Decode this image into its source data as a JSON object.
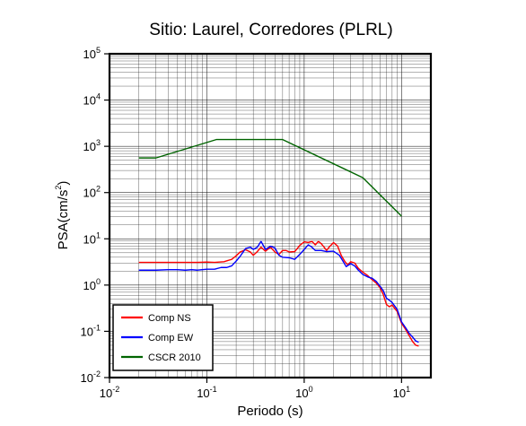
{
  "chart_data": {
    "type": "line",
    "title": "Sitio: Laurel, Corredores (PLRL)",
    "xlabel": "Periodo (s)",
    "ylabel": {
      "prefix": "PSA(cm/s",
      "sup": "2",
      "suffix": ")"
    },
    "x_scale": "log",
    "y_scale": "log",
    "xlim": [
      0.01,
      20
    ],
    "ylim": [
      0.01,
      100000
    ],
    "grid": true,
    "x_ticks": [
      {
        "base": "10",
        "exp": "-2",
        "value": 0.01
      },
      {
        "base": "10",
        "exp": "-1",
        "value": 0.1
      },
      {
        "base": "10",
        "exp": "0",
        "value": 1
      },
      {
        "base": "10",
        "exp": "1",
        "value": 10
      }
    ],
    "y_ticks": [
      {
        "base": "10",
        "exp": "-2",
        "value": 0.01
      },
      {
        "base": "10",
        "exp": "-1",
        "value": 0.1
      },
      {
        "base": "10",
        "exp": "0",
        "value": 1
      },
      {
        "base": "10",
        "exp": "1",
        "value": 10
      },
      {
        "base": "10",
        "exp": "2",
        "value": 100
      },
      {
        "base": "10",
        "exp": "3",
        "value": 1000
      },
      {
        "base": "10",
        "exp": "4",
        "value": 10000
      },
      {
        "base": "10",
        "exp": "5",
        "value": 100000
      }
    ],
    "legend_position": "bottom-left",
    "series": [
      {
        "name": "Comp NS",
        "color": "#ff0000",
        "points": [
          [
            0.02,
            3.1
          ],
          [
            0.025,
            3.1
          ],
          [
            0.03,
            3.1
          ],
          [
            0.04,
            3.1
          ],
          [
            0.05,
            3.1
          ],
          [
            0.06,
            3.1
          ],
          [
            0.07,
            3.1
          ],
          [
            0.08,
            3.1
          ],
          [
            0.1,
            3.15
          ],
          [
            0.12,
            3.1
          ],
          [
            0.15,
            3.2
          ],
          [
            0.18,
            3.6
          ],
          [
            0.2,
            4.3
          ],
          [
            0.22,
            5.2
          ],
          [
            0.25,
            5.8
          ],
          [
            0.28,
            5.2
          ],
          [
            0.3,
            4.4
          ],
          [
            0.33,
            5.3
          ],
          [
            0.36,
            6.6
          ],
          [
            0.4,
            5.4
          ],
          [
            0.45,
            6.6
          ],
          [
            0.5,
            5.2
          ],
          [
            0.55,
            4.6
          ],
          [
            0.6,
            5.6
          ],
          [
            0.65,
            5.6
          ],
          [
            0.7,
            5.2
          ],
          [
            0.8,
            5.3
          ],
          [
            0.9,
            7.2
          ],
          [
            1.0,
            8.6
          ],
          [
            1.1,
            8.3
          ],
          [
            1.2,
            8.8
          ],
          [
            1.3,
            7.4
          ],
          [
            1.4,
            8.8
          ],
          [
            1.5,
            7.8
          ],
          [
            1.6,
            6.6
          ],
          [
            1.7,
            5.6
          ],
          [
            1.8,
            6.6
          ],
          [
            2.0,
            8.3
          ],
          [
            2.2,
            7.0
          ],
          [
            2.4,
            4.4
          ],
          [
            2.6,
            3.3
          ],
          [
            2.8,
            2.7
          ],
          [
            3.0,
            3.2
          ],
          [
            3.3,
            3.0
          ],
          [
            3.6,
            2.3
          ],
          [
            4.0,
            1.9
          ],
          [
            4.5,
            1.6
          ],
          [
            5.0,
            1.3
          ],
          [
            5.5,
            1.1
          ],
          [
            6.0,
            0.88
          ],
          [
            6.5,
            0.62
          ],
          [
            7.0,
            0.38
          ],
          [
            7.5,
            0.34
          ],
          [
            8.0,
            0.37
          ],
          [
            9.0,
            0.27
          ],
          [
            10.0,
            0.15
          ],
          [
            11.0,
            0.11
          ],
          [
            12.0,
            0.08
          ],
          [
            13.0,
            0.06
          ],
          [
            14.0,
            0.05
          ],
          [
            15.0,
            0.048
          ]
        ]
      },
      {
        "name": "Comp EW",
        "color": "#0000ff",
        "points": [
          [
            0.02,
            2.1
          ],
          [
            0.025,
            2.1
          ],
          [
            0.03,
            2.1
          ],
          [
            0.04,
            2.15
          ],
          [
            0.05,
            2.15
          ],
          [
            0.06,
            2.1
          ],
          [
            0.07,
            2.15
          ],
          [
            0.08,
            2.1
          ],
          [
            0.1,
            2.2
          ],
          [
            0.12,
            2.2
          ],
          [
            0.14,
            2.4
          ],
          [
            0.16,
            2.4
          ],
          [
            0.18,
            2.6
          ],
          [
            0.2,
            3.3
          ],
          [
            0.22,
            4.2
          ],
          [
            0.25,
            6.2
          ],
          [
            0.28,
            6.6
          ],
          [
            0.3,
            5.9
          ],
          [
            0.33,
            6.6
          ],
          [
            0.36,
            8.8
          ],
          [
            0.4,
            5.9
          ],
          [
            0.45,
            6.9
          ],
          [
            0.5,
            6.4
          ],
          [
            0.55,
            4.4
          ],
          [
            0.6,
            4.0
          ],
          [
            0.7,
            3.9
          ],
          [
            0.8,
            3.6
          ],
          [
            0.9,
            4.6
          ],
          [
            1.0,
            5.9
          ],
          [
            1.1,
            7.4
          ],
          [
            1.2,
            6.6
          ],
          [
            1.3,
            5.6
          ],
          [
            1.5,
            5.6
          ],
          [
            1.7,
            5.3
          ],
          [
            2.0,
            5.4
          ],
          [
            2.3,
            4.4
          ],
          [
            2.5,
            3.3
          ],
          [
            2.7,
            2.5
          ],
          [
            3.0,
            2.9
          ],
          [
            3.3,
            2.6
          ],
          [
            3.6,
            2.1
          ],
          [
            4.0,
            1.7
          ],
          [
            4.5,
            1.5
          ],
          [
            5.0,
            1.4
          ],
          [
            5.5,
            1.2
          ],
          [
            6.0,
            0.95
          ],
          [
            6.5,
            0.75
          ],
          [
            7.0,
            0.52
          ],
          [
            7.5,
            0.47
          ],
          [
            8.0,
            0.42
          ],
          [
            9.0,
            0.3
          ],
          [
            10.0,
            0.16
          ],
          [
            11.0,
            0.12
          ],
          [
            12.0,
            0.09
          ],
          [
            13.0,
            0.075
          ],
          [
            14.0,
            0.062
          ],
          [
            15.0,
            0.058
          ]
        ]
      },
      {
        "name": "CSCR 2010",
        "color": "#006400",
        "points": [
          [
            0.02,
            560
          ],
          [
            0.03,
            560
          ],
          [
            0.125,
            1400
          ],
          [
            0.6,
            1400
          ],
          [
            4.0,
            210
          ],
          [
            10.0,
            31
          ]
        ]
      }
    ]
  }
}
